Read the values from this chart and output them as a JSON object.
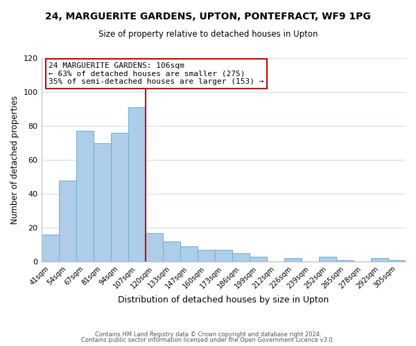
{
  "title": "24, MARGUERITE GARDENS, UPTON, PONTEFRACT, WF9 1PG",
  "subtitle": "Size of property relative to detached houses in Upton",
  "xlabel": "Distribution of detached houses by size in Upton",
  "ylabel": "Number of detached properties",
  "bar_labels": [
    "41sqm",
    "54sqm",
    "67sqm",
    "81sqm",
    "94sqm",
    "107sqm",
    "120sqm",
    "133sqm",
    "147sqm",
    "160sqm",
    "173sqm",
    "186sqm",
    "199sqm",
    "212sqm",
    "226sqm",
    "239sqm",
    "252sqm",
    "265sqm",
    "278sqm",
    "292sqm",
    "305sqm"
  ],
  "bar_values": [
    16,
    48,
    77,
    70,
    76,
    91,
    17,
    12,
    9,
    7,
    7,
    5,
    3,
    0,
    2,
    0,
    3,
    1,
    0,
    2,
    1
  ],
  "bar_color": "#aecde8",
  "bar_edge_color": "#6aaed6",
  "vline_x": 5.5,
  "vline_color": "#cc0000",
  "annotation_title": "24 MARGUERITE GARDENS: 106sqm",
  "annotation_line1": "← 63% of detached houses are smaller (275)",
  "annotation_line2": "35% of semi-detached houses are larger (153) →",
  "annotation_box_color": "#ffffff",
  "annotation_box_edge_color": "#cc0000",
  "ylim": [
    0,
    120
  ],
  "yticks": [
    0,
    20,
    40,
    60,
    80,
    100,
    120
  ],
  "footer1": "Contains HM Land Registry data © Crown copyright and database right 2024.",
  "footer2": "Contains public sector information licensed under the Open Government Licence v3.0.",
  "bg_color": "#ffffff",
  "grid_color": "#d0dfe8"
}
